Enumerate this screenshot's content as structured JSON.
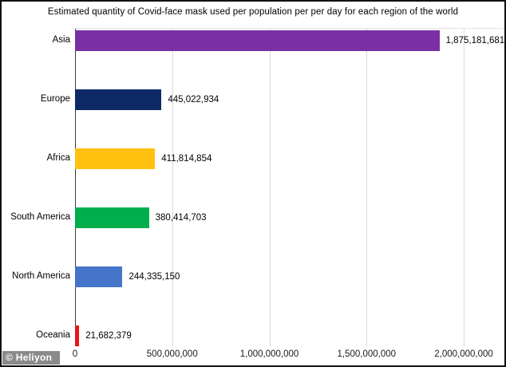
{
  "title": "Estimated quantity of Covid-face mask used per population per per day for each region of the world",
  "watermark": "© Heliyon",
  "colors": {
    "background": "#ffffff",
    "frame": "#111111",
    "axis_line": "#3a3a3a",
    "gridline": "#d9d9d9",
    "text": "#000000",
    "watermark_bg": "#7d7d7d",
    "watermark_text": "#ffffff"
  },
  "chart_data": {
    "type": "bar",
    "orientation": "horizontal",
    "title": "Estimated quantity of Covid-face mask used per population per per day for each region of the world",
    "xlabel": "",
    "ylabel": "",
    "grid": "vertical",
    "legend": "none",
    "categories": [
      "Asia",
      "Europe",
      "Africa",
      "South America",
      "North America",
      "Oceania"
    ],
    "values": [
      1875181681,
      445022934,
      411814854,
      380414703,
      244335150,
      21682379
    ],
    "value_labels": [
      "1,875,181,681",
      "445,022,934",
      "411,814,854",
      "380,414,703",
      "244,335,150",
      "21,682,379"
    ],
    "bar_colors": [
      "#7A30A4",
      "#0E2A66",
      "#FFC010",
      "#00AE4E",
      "#4674C8",
      "#EC1515"
    ],
    "x_ticks": [
      0,
      500000000,
      1000000000,
      1500000000,
      2000000000
    ],
    "x_tick_labels": [
      "0",
      "500,000,000",
      "1,000,000,000",
      "1,500,000,000",
      "2,000,000,000"
    ],
    "xlim": [
      0,
      2210000000
    ]
  }
}
